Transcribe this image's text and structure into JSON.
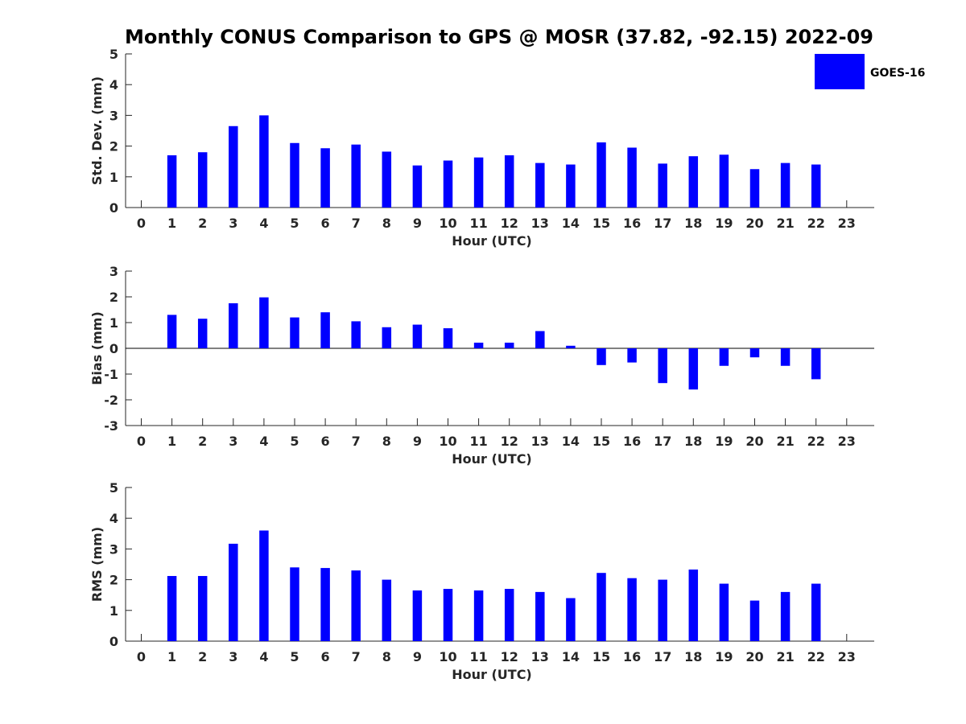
{
  "chart_data": {
    "title": "Monthly CONUS Comparison to GPS @ MOSR (37.82, -92.15) 2022-09",
    "type": "bar",
    "legend": {
      "label": "GOES-16",
      "color": "#0000ff",
      "location": "top-right"
    },
    "subplots": [
      {
        "type": "bar",
        "xlabel": "Hour (UTC)",
        "ylabel": "Std. Dev. (mm)",
        "ylim": [
          0,
          5
        ],
        "yticks": [
          0,
          1,
          2,
          3,
          4,
          5
        ],
        "categories": [
          "0",
          "1",
          "2",
          "3",
          "4",
          "5",
          "6",
          "7",
          "8",
          "9",
          "10",
          "11",
          "12",
          "13",
          "14",
          "15",
          "16",
          "17",
          "18",
          "19",
          "20",
          "21",
          "22",
          "23"
        ],
        "series": [
          {
            "name": "GOES-16",
            "values": [
              null,
              1.7,
              1.8,
              2.65,
              3.0,
              2.1,
              1.93,
              2.05,
              1.82,
              1.37,
              1.53,
              1.63,
              1.7,
              1.45,
              1.4,
              2.12,
              1.95,
              1.43,
              1.67,
              1.72,
              1.25,
              1.45,
              1.4,
              null
            ]
          }
        ]
      },
      {
        "type": "bar",
        "xlabel": "Hour (UTC)",
        "ylabel": "Bias (mm)",
        "ylim": [
          -3,
          3
        ],
        "yticks": [
          -3,
          -2,
          -1,
          0,
          1,
          2,
          3
        ],
        "zero_line": true,
        "categories": [
          "0",
          "1",
          "2",
          "3",
          "4",
          "5",
          "6",
          "7",
          "8",
          "9",
          "10",
          "11",
          "12",
          "13",
          "14",
          "15",
          "16",
          "17",
          "18",
          "19",
          "20",
          "21",
          "22",
          "23"
        ],
        "series": [
          {
            "name": "GOES-16",
            "values": [
              null,
              1.3,
              1.15,
              1.75,
              1.98,
              1.2,
              1.4,
              1.05,
              0.82,
              0.92,
              0.78,
              0.22,
              0.22,
              0.67,
              0.1,
              -0.65,
              -0.55,
              -1.35,
              -1.6,
              -0.68,
              -0.35,
              -0.68,
              -1.2,
              null
            ]
          }
        ]
      },
      {
        "type": "bar",
        "xlabel": "Hour (UTC)",
        "ylabel": "RMS (mm)",
        "ylim": [
          0,
          5
        ],
        "yticks": [
          0,
          1,
          2,
          3,
          4,
          5
        ],
        "categories": [
          "0",
          "1",
          "2",
          "3",
          "4",
          "5",
          "6",
          "7",
          "8",
          "9",
          "10",
          "11",
          "12",
          "13",
          "14",
          "15",
          "16",
          "17",
          "18",
          "19",
          "20",
          "21",
          "22",
          "23"
        ],
        "series": [
          {
            "name": "GOES-16",
            "values": [
              null,
              2.12,
              2.12,
              3.17,
              3.6,
              2.4,
              2.38,
              2.3,
              2.0,
              1.65,
              1.7,
              1.65,
              1.7,
              1.6,
              1.4,
              2.22,
              2.05,
              2.0,
              2.33,
              1.87,
              1.32,
              1.6,
              1.87,
              null
            ]
          }
        ]
      }
    ]
  }
}
